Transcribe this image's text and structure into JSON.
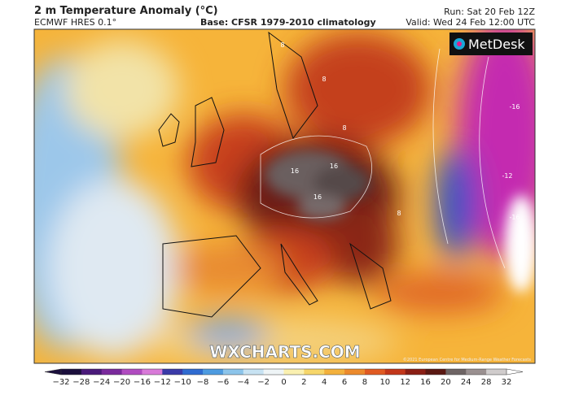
{
  "header": {
    "title": "2 m Temperature Anomaly (°C)",
    "model": "ECMWF HRES 0.1°",
    "base": "Base: CFSR 1979-2010 climatology",
    "run": "Run: Sat 20 Feb 12Z",
    "valid": "Valid: Wed 24 Feb 12:00 UTC"
  },
  "logo": "MetDesk",
  "watermark": "WXCHARTS.COM",
  "copyright": "©2021 European Centre for Medium-Range Weather Forecasts",
  "contour_labels": [
    "8",
    "8",
    "8",
    "16",
    "16",
    "16",
    "-16",
    "-12",
    "-16",
    "8"
  ],
  "colorbar": {
    "labels": [
      "−32",
      "−28",
      "−24",
      "−20",
      "−16",
      "−12",
      "−10",
      "−8",
      "−6",
      "−4",
      "−2",
      "0",
      "2",
      "4",
      "6",
      "8",
      "10",
      "12",
      "16",
      "20",
      "24",
      "28",
      "32"
    ]
  }
}
